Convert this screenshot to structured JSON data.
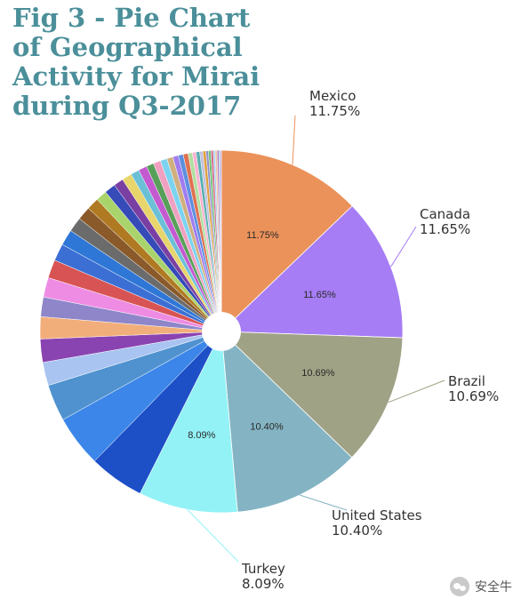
{
  "chart_data": {
    "type": "pie",
    "title_lines": [
      "Fig 3 - Pie Chart",
      "of Geographical",
      "Activity for Mirai",
      "during Q3-2017"
    ],
    "labeled_slices": [
      {
        "label": "Mexico",
        "value": 11.75,
        "value_text": "11.75%",
        "color": "#eb925a"
      },
      {
        "label": "Canada",
        "value": 11.65,
        "value_text": "11.65%",
        "color": "#a67df5"
      },
      {
        "label": "Brazil",
        "value": 10.69,
        "value_text": "10.69%",
        "color": "#a0a285"
      },
      {
        "label": "United States",
        "value": 10.4,
        "value_text": "10.40%",
        "color": "#84b4c3"
      },
      {
        "label": "Turkey",
        "value": 8.09,
        "value_text": "8.09%",
        "color": "#93f2f6"
      }
    ],
    "unlabeled_slices": [
      {
        "value": 4.5,
        "color": "#1d4fc7"
      },
      {
        "value": 4.2,
        "color": "#3b86e8"
      },
      {
        "value": 3.0,
        "color": "#4f92cf"
      },
      {
        "value": 1.9,
        "color": "#a9c4f1"
      },
      {
        "value": 1.9,
        "color": "#8a44b1"
      },
      {
        "value": 1.8,
        "color": "#f2ae7a"
      },
      {
        "value": 1.6,
        "color": "#8e86c9"
      },
      {
        "value": 1.6,
        "color": "#ee8ce4"
      },
      {
        "value": 1.5,
        "color": "#d85454"
      },
      {
        "value": 1.4,
        "color": "#3c6fd4"
      },
      {
        "value": 1.3,
        "color": "#2e77d6"
      },
      {
        "value": 1.2,
        "color": "#6b6b6b"
      },
      {
        "value": 1.1,
        "color": "#8a5a2b"
      },
      {
        "value": 1.0,
        "color": "#b07a22"
      },
      {
        "value": 0.9,
        "color": "#a9d46c"
      },
      {
        "value": 0.9,
        "color": "#364bb8"
      },
      {
        "value": 0.8,
        "color": "#7a3fa2"
      },
      {
        "value": 0.8,
        "color": "#e8d56b"
      },
      {
        "value": 0.7,
        "color": "#6cc0d6"
      },
      {
        "value": 0.7,
        "color": "#c35ad0"
      },
      {
        "value": 0.6,
        "color": "#58a05a"
      },
      {
        "value": 0.6,
        "color": "#f0a0c0"
      },
      {
        "value": 0.55,
        "color": "#7bd3f0"
      },
      {
        "value": 0.5,
        "color": "#d0b080"
      },
      {
        "value": 0.45,
        "color": "#a07cf0"
      },
      {
        "value": 0.4,
        "color": "#5c8fe0"
      },
      {
        "value": 0.4,
        "color": "#e07050"
      },
      {
        "value": 0.35,
        "color": "#b0e0a0"
      },
      {
        "value": 0.3,
        "color": "#ffb0d0"
      },
      {
        "value": 0.3,
        "color": "#5ab0b0"
      },
      {
        "value": 0.25,
        "color": "#c0c0e0"
      },
      {
        "value": 0.25,
        "color": "#e0a040"
      },
      {
        "value": 0.2,
        "color": "#9090d0"
      },
      {
        "value": 0.2,
        "color": "#70c070"
      },
      {
        "value": 0.2,
        "color": "#d07090"
      },
      {
        "value": 0.15,
        "color": "#a0d0f0"
      },
      {
        "value": 0.15,
        "color": "#f0c0a0"
      },
      {
        "value": 0.15,
        "color": "#b080c0"
      },
      {
        "value": 0.1,
        "color": "#80b0d0"
      },
      {
        "value": 0.1,
        "color": "#c0a0e0"
      }
    ]
  },
  "watermark": {
    "text": "安全牛",
    "icon": "wechat-icon"
  }
}
